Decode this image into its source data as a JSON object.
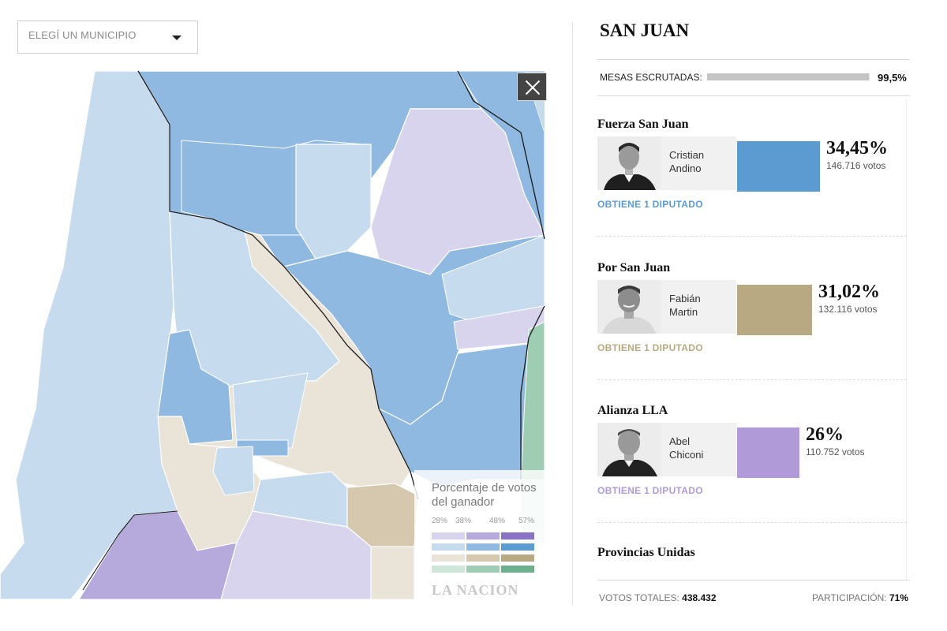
{
  "selector": {
    "label": "ELEGÍ UN MUNICIPIO"
  },
  "legend": {
    "title": "Porcentaje de votos del ganador",
    "ticks": [
      "28%",
      "38%",
      "48%",
      "57%"
    ],
    "rows": [
      [
        "#d9d4ee",
        "#b6a9dc",
        "#8a73c2"
      ],
      [
        "#c7dbee",
        "#8fb9e0",
        "#5b9bd2"
      ],
      [
        "#eae3d8",
        "#d5c8ae",
        "#b9a982"
      ],
      [
        "#cfe6da",
        "#9fcdb3",
        "#6eaf8e"
      ]
    ],
    "brand": "LA NACION"
  },
  "province": {
    "name": "SAN JUAN",
    "mesas_label": "MESAS ESCRUTADAS:",
    "mesas_value": "99,5%",
    "mesas_fraction": 0.995
  },
  "parties": [
    {
      "name": "Fuerza San Juan",
      "candidate_first": "Cristian",
      "candidate_last": "Andino",
      "pct": "34,45%",
      "share": 34.45,
      "votes": "146.716 votos",
      "seats": "OBTIENE 1 DIPUTADO",
      "color": "#5b9bd2"
    },
    {
      "name": "Por San Juan",
      "candidate_first": "Fabián",
      "candidate_last": "Martin",
      "pct": "31,02%",
      "share": 31.02,
      "votes": "132.116 votos",
      "seats": "OBTIENE 1 DIPUTADO",
      "color": "#b9a982"
    },
    {
      "name": "Alianza LLA",
      "candidate_first": "Abel",
      "candidate_last": "Chiconi",
      "pct": "26%",
      "share": 26,
      "votes": "110.752 votos",
      "seats": "OBTIENE 1 DIPUTADO",
      "color": "#b09ad8"
    }
  ],
  "next_party": {
    "name": "Provincias Unidas"
  },
  "footer": {
    "total_label": "VOTOS TOTALES:",
    "total_value": "438.432",
    "participation_label": "PARTICIPACIÓN:",
    "participation_value": "71%"
  }
}
